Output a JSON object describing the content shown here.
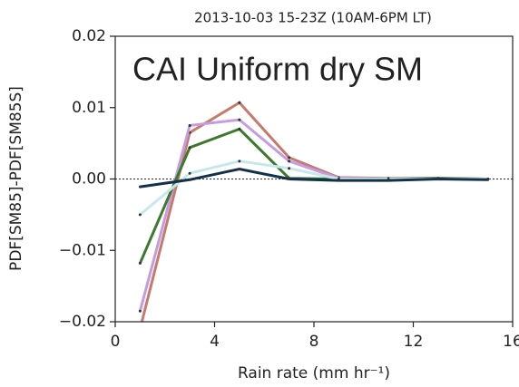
{
  "chart_data": {
    "type": "line",
    "title": "2013-10-03 15-23Z (10AM-6PM LT)",
    "annotation": "CAI Uniform dry SM",
    "xlabel": "Rain rate (mm hr⁻¹)",
    "ylabel": "PDF[SM85]-PDF[SM85S]",
    "x": [
      1,
      3,
      5,
      7,
      9,
      11,
      13,
      15
    ],
    "series": [
      {
        "color": "#c57a6c",
        "values": [
          -0.021,
          0.0065,
          0.0107,
          0.003,
          0.0002,
          0.0001,
          0.0001,
          0.0
        ]
      },
      {
        "color": "#c49ce2",
        "values": [
          -0.0185,
          0.0075,
          0.0083,
          0.0025,
          0.0001,
          0.0,
          0.0,
          0.0
        ]
      },
      {
        "color": "#3b7a2c",
        "values": [
          -0.0118,
          0.0044,
          0.007,
          0.0001,
          0.0,
          0.0,
          0.0001,
          0.0
        ]
      },
      {
        "color": "#c6e8ea",
        "values": [
          -0.005,
          0.0008,
          0.0025,
          0.0015,
          0.0,
          0.0,
          0.0,
          0.0
        ]
      },
      {
        "color": "#12314a",
        "values": [
          -0.0011,
          -0.0001,
          0.0014,
          0.0,
          -0.0002,
          -0.0002,
          0.0,
          -0.0001
        ]
      }
    ],
    "xlim": [
      0,
      16
    ],
    "xticks": [
      0,
      4,
      8,
      12,
      16
    ],
    "ylim": [
      -0.02,
      0.02
    ],
    "yticks": [
      {
        "value": -0.02,
        "label": "−0.02"
      },
      {
        "value": -0.01,
        "label": "−0.01"
      },
      {
        "value": 0.0,
        "label": "0.00"
      },
      {
        "value": 0.01,
        "label": "0.01"
      },
      {
        "value": 0.02,
        "label": "0.02"
      }
    ],
    "zero_line": true
  }
}
